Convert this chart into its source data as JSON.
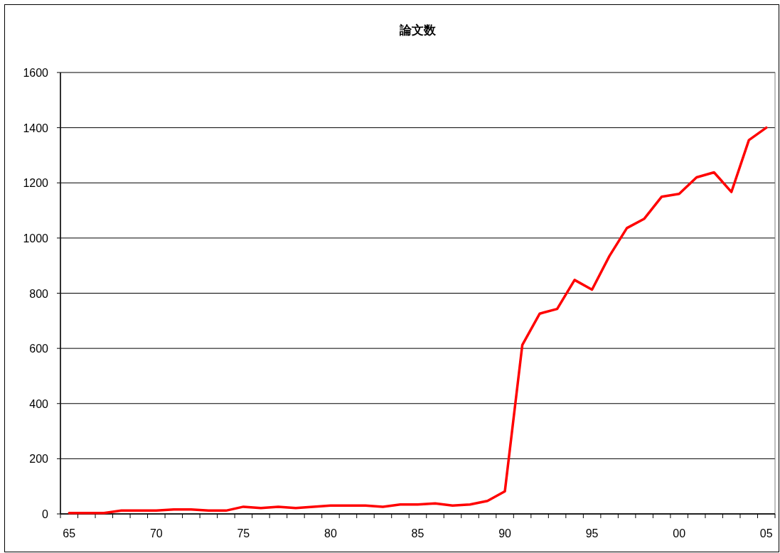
{
  "chart_data": {
    "type": "line",
    "title": "論文数",
    "categories": [
      "65",
      null,
      null,
      null,
      null,
      "70",
      null,
      null,
      null,
      null,
      "75",
      null,
      null,
      null,
      null,
      "80",
      null,
      null,
      null,
      null,
      "85",
      null,
      null,
      null,
      null,
      "90",
      null,
      null,
      null,
      null,
      "95",
      null,
      null,
      null,
      null,
      "00",
      null,
      null,
      null,
      null,
      "05"
    ],
    "series": [
      {
        "color": "#ff0000",
        "values": [
          3,
          3,
          3,
          12,
          12,
          12,
          16,
          16,
          12,
          12,
          26,
          21,
          26,
          21,
          26,
          30,
          30,
          30,
          26,
          34,
          34,
          38,
          30,
          34,
          47,
          82,
          612,
          726,
          743,
          848,
          813,
          935,
          1036,
          1070,
          1150,
          1160,
          1220,
          1238,
          1167,
          1355,
          1400
        ]
      }
    ],
    "ylim": [
      0,
      1600
    ],
    "yticks": [
      0,
      200,
      400,
      600,
      800,
      1000,
      1200,
      1400,
      1600
    ],
    "grid": "y",
    "marker": "none",
    "line_style": "solid"
  }
}
